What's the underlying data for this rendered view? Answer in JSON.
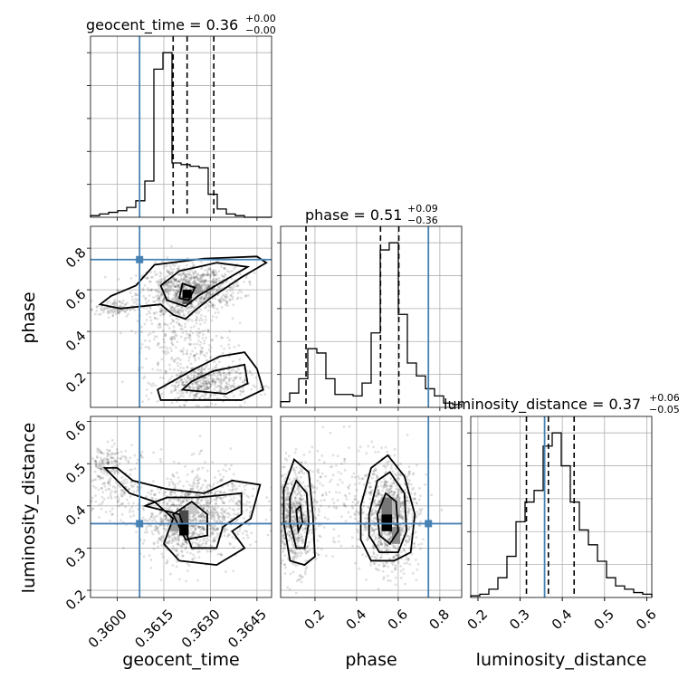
{
  "chart_data": {
    "type": "corner",
    "parameters": [
      "geocent_time",
      "phase",
      "luminosity_distance"
    ],
    "ranges": {
      "geocent_time": [
        0.35914,
        0.36497
      ],
      "phase": [
        0.035,
        0.905
      ],
      "luminosity_distance": [
        0.183,
        0.612
      ]
    },
    "injected_values": {
      "geocent_time": 0.36072,
      "phase": 0.745,
      "luminosity_distance": 0.358
    },
    "quantiles": {
      "geocent_time": [
        0.3618,
        0.36225,
        0.36311
      ],
      "phase": [
        0.157,
        0.515,
        0.603
      ],
      "luminosity_distance": [
        0.315,
        0.367,
        0.428
      ]
    },
    "titles": {
      "geocent_time": {
        "label": "geocent_time = 0.36",
        "plus": "+0.00",
        "minus": "−0.00"
      },
      "phase": {
        "label": "phase = 0.51",
        "plus": "+0.09",
        "minus": "−0.36"
      },
      "luminosity_distance": {
        "label": "luminosity_distance = 0.37",
        "plus": "+0.06",
        "minus": "−0.05"
      }
    },
    "xlabels": [
      "geocent_time",
      "phase",
      "luminosity_distance"
    ],
    "ylabels": [
      "phase",
      "luminosity_distance"
    ],
    "xticks": {
      "geocent_time": [
        "0.3600",
        "0.3615",
        "0.3630",
        "0.3645"
      ],
      "phase": [
        "0.2",
        "0.4",
        "0.6",
        "0.8"
      ],
      "luminosity_distance": [
        "0.2",
        "0.3",
        "0.4",
        "0.5",
        "0.6"
      ]
    },
    "yticks": {
      "phase": [
        "0.2",
        "0.4",
        "0.6",
        "0.8"
      ],
      "luminosity_distance": [
        "0.2",
        "0.3",
        "0.4",
        "0.5",
        "0.6"
      ]
    },
    "histograms": {
      "geocent_time": [
        1,
        2,
        3,
        4,
        6,
        10,
        22,
        90,
        100,
        33,
        32,
        31,
        30,
        14,
        5,
        2,
        1,
        0,
        0,
        0
      ],
      "phase": [
        4,
        10,
        20,
        41,
        38,
        20,
        9,
        9,
        8,
        17,
        52,
        110,
        115,
        65,
        31,
        22,
        13,
        8,
        3,
        2
      ],
      "luminosity_distance": [
        1,
        2,
        5,
        12,
        25,
        46,
        58,
        65,
        92,
        100,
        80,
        58,
        41,
        32,
        22,
        12,
        7,
        5,
        3,
        2
      ]
    },
    "grid": true,
    "truth_color": "#4682b4"
  }
}
